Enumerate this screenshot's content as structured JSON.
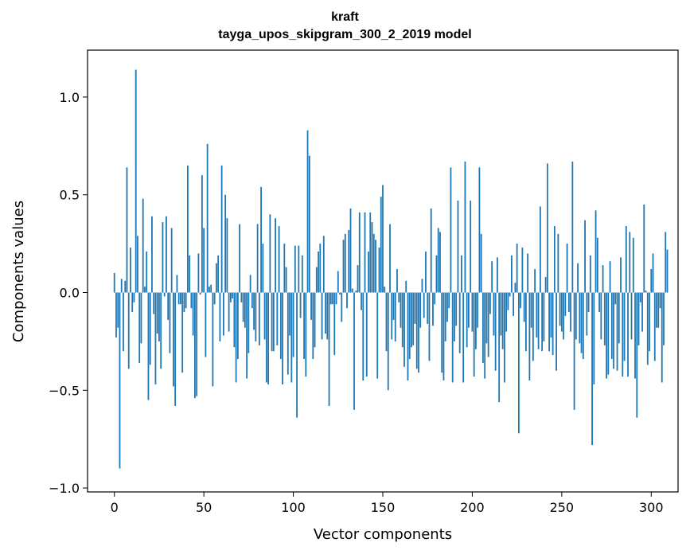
{
  "chart_data": {
    "type": "bar",
    "title": "kraft",
    "subtitle": "tayga_upos_skipgram_300_2_2019 model",
    "xlabel": "Vector components",
    "ylabel": "Components values",
    "xlim": [
      -15,
      315
    ],
    "ylim": [
      -1.02,
      1.24
    ],
    "x_ticks": [
      0,
      50,
      100,
      150,
      200,
      250,
      300
    ],
    "y_ticks": [
      -1.0,
      -0.5,
      0.0,
      0.5,
      1.0
    ],
    "y_tick_labels": [
      "−1.0",
      "−0.5",
      "0.0",
      "0.5",
      "1.0"
    ],
    "x_tick_labels": [
      "0",
      "50",
      "100",
      "150",
      "200",
      "250",
      "300"
    ],
    "bar_color": "#1f77b4",
    "grid": false,
    "values": [
      0.1,
      -0.23,
      -0.18,
      -0.9,
      0.07,
      -0.3,
      0.06,
      0.64,
      -0.39,
      0.23,
      -0.1,
      -0.05,
      1.14,
      0.29,
      -0.36,
      -0.26,
      0.48,
      0.03,
      0.21,
      -0.55,
      -0.37,
      0.39,
      -0.11,
      -0.47,
      -0.21,
      -0.25,
      -0.39,
      0.36,
      -0.02,
      0.39,
      -0.14,
      -0.31,
      0.33,
      -0.48,
      -0.58,
      0.09,
      -0.06,
      -0.06,
      -0.41,
      -0.1,
      -0.08,
      0.65,
      0.19,
      -0.08,
      -0.22,
      -0.54,
      -0.53,
      0.2,
      -0.01,
      0.6,
      0.33,
      -0.33,
      0.76,
      0.03,
      0.04,
      -0.48,
      -0.06,
      0.15,
      0.19,
      -0.25,
      0.65,
      -0.22,
      0.5,
      0.38,
      -0.2,
      -0.05,
      -0.03,
      -0.28,
      -0.46,
      -0.34,
      0.35,
      -0.05,
      -0.15,
      -0.18,
      -0.44,
      -0.31,
      0.09,
      -0.08,
      -0.19,
      -0.25,
      0.35,
      -0.27,
      0.54,
      0.25,
      -0.24,
      -0.46,
      -0.47,
      0.4,
      -0.3,
      -0.3,
      0.38,
      -0.27,
      0.34,
      -0.34,
      -0.47,
      0.25,
      0.13,
      -0.42,
      -0.22,
      -0.46,
      -0.33,
      0.24,
      -0.64,
      0.24,
      -0.13,
      0.19,
      -0.34,
      -0.43,
      0.83,
      0.7,
      -0.14,
      -0.34,
      -0.28,
      0.13,
      0.21,
      0.25,
      -0.24,
      0.29,
      -0.21,
      -0.24,
      -0.58,
      -0.06,
      -0.06,
      -0.32,
      -0.06,
      0.11,
      -0.01,
      -0.15,
      0.27,
      0.3,
      -0.08,
      0.32,
      0.43,
      0.02,
      -0.6,
      0.01,
      0.14,
      0.41,
      -0.09,
      -0.45,
      0.41,
      -0.43,
      0.21,
      0.41,
      0.36,
      0.3,
      0.27,
      -0.44,
      0.23,
      0.49,
      0.55,
      0.03,
      -0.3,
      -0.5,
      0.35,
      -0.24,
      -0.14,
      -0.25,
      0.12,
      -0.05,
      -0.18,
      -0.28,
      -0.38,
      0.06,
      -0.45,
      -0.34,
      -0.28,
      -0.27,
      -0.16,
      -0.39,
      -0.41,
      -0.18,
      0.07,
      -0.13,
      0.21,
      -0.16,
      -0.35,
      0.43,
      -0.17,
      -0.06,
      0.19,
      0.33,
      0.31,
      -0.41,
      -0.45,
      -0.25,
      -0.15,
      -0.08,
      0.64,
      -0.46,
      -0.25,
      -0.17,
      0.47,
      -0.31,
      0.19,
      -0.46,
      0.67,
      -0.28,
      -0.18,
      0.47,
      -0.2,
      -0.43,
      -0.29,
      -0.18,
      0.64,
      0.3,
      -0.36,
      -0.44,
      -0.26,
      -0.33,
      -0.11,
      0.16,
      -0.22,
      -0.4,
      0.18,
      -0.56,
      -0.22,
      -0.29,
      -0.46,
      -0.2,
      -0.09,
      -0.02,
      0.19,
      -0.12,
      0.05,
      0.25,
      -0.72,
      -0.08,
      0.23,
      -0.15,
      -0.3,
      0.2,
      -0.45,
      -0.18,
      -0.35,
      0.12,
      -0.23,
      -0.29,
      0.44,
      -0.3,
      -0.25,
      0.08,
      0.66,
      -0.3,
      -0.23,
      -0.32,
      0.34,
      -0.4,
      0.3,
      -0.17,
      -0.2,
      -0.24,
      -0.12,
      0.25,
      -0.1,
      -0.2,
      0.67,
      -0.6,
      -0.24,
      0.15,
      -0.26,
      -0.31,
      -0.34,
      0.37,
      -0.22,
      -0.1,
      0.19,
      -0.78,
      -0.47,
      0.42,
      0.28,
      -0.1,
      -0.24,
      0.14,
      -0.27,
      -0.44,
      -0.42,
      0.16,
      -0.34,
      -0.39,
      -0.06,
      -0.4,
      -0.26,
      0.18,
      -0.43,
      -0.35,
      0.34,
      -0.43,
      0.31,
      -0.24,
      0.28,
      -0.44,
      -0.64,
      -0.27,
      -0.05,
      -0.2,
      0.45,
      0.01,
      -0.37,
      -0.3,
      0.12,
      0.2,
      -0.35,
      -0.18,
      -0.18,
      -0.08,
      -0.46,
      -0.27,
      0.31,
      0.22
    ]
  }
}
